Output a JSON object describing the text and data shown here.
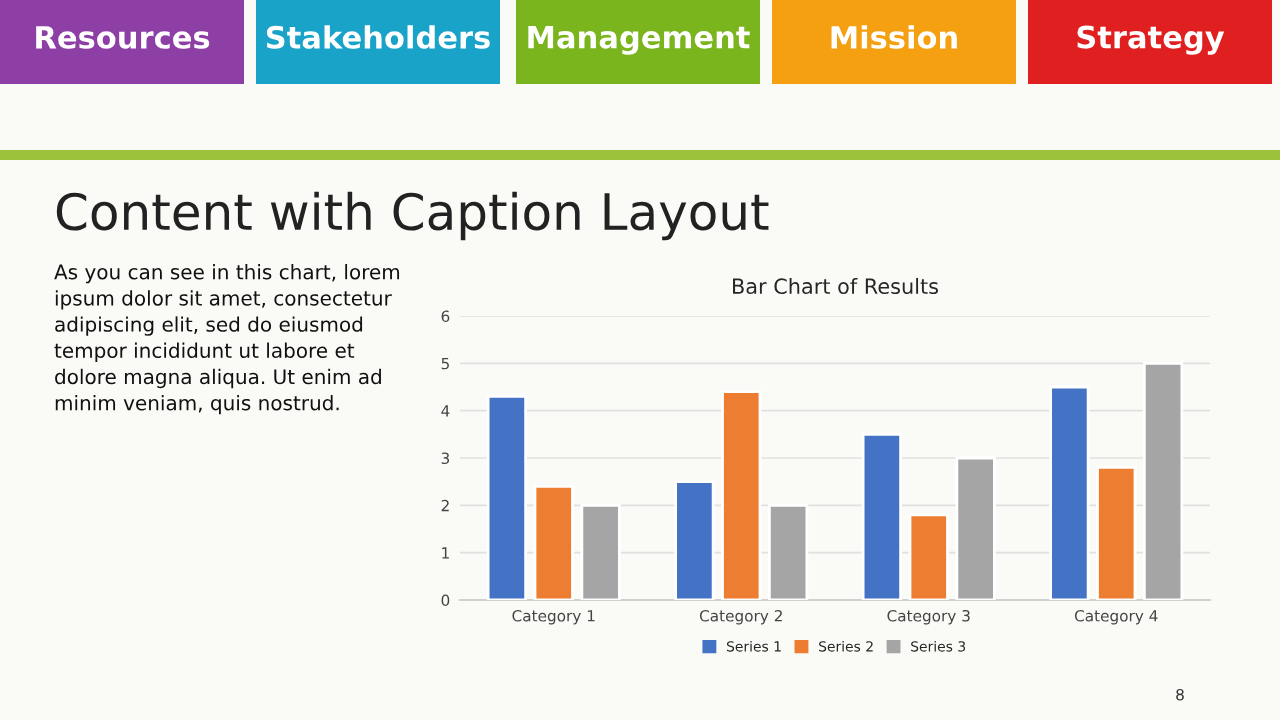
{
  "chart_data": {
    "type": "bar",
    "title": "Bar Chart of Results",
    "categories": [
      "Category 1",
      "Category 2",
      "Category 3",
      "Category 4"
    ],
    "series": [
      {
        "name": "Series 1",
        "color": "#4472c4",
        "values": [
          4.3,
          2.5,
          3.5,
          4.5
        ]
      },
      {
        "name": "Series 2",
        "color": "#ed7d31",
        "values": [
          2.4,
          4.4,
          1.8,
          2.8
        ]
      },
      {
        "name": "Series 3",
        "color": "#a5a5a5",
        "values": [
          2,
          2,
          3,
          5
        ]
      }
    ],
    "ylim": [
      0,
      6
    ],
    "yticks": [
      0,
      1,
      2,
      3,
      4,
      5,
      6
    ],
    "grid": "y",
    "legend": "bottom",
    "annotations": [
      "Resources",
      "Stakeholders",
      "Management",
      "Mission",
      "Strategy",
      "Content with Caption Layout",
      "As you can see in this chart, lorem ipsum dolor sit amet, consectetur adipiscing elit, sed do eiusmod tempor incididunt ut labore et dolore magna aliqua. Ut enim ad minim veniam, quis nostrud.",
      "8"
    ]
  }
}
